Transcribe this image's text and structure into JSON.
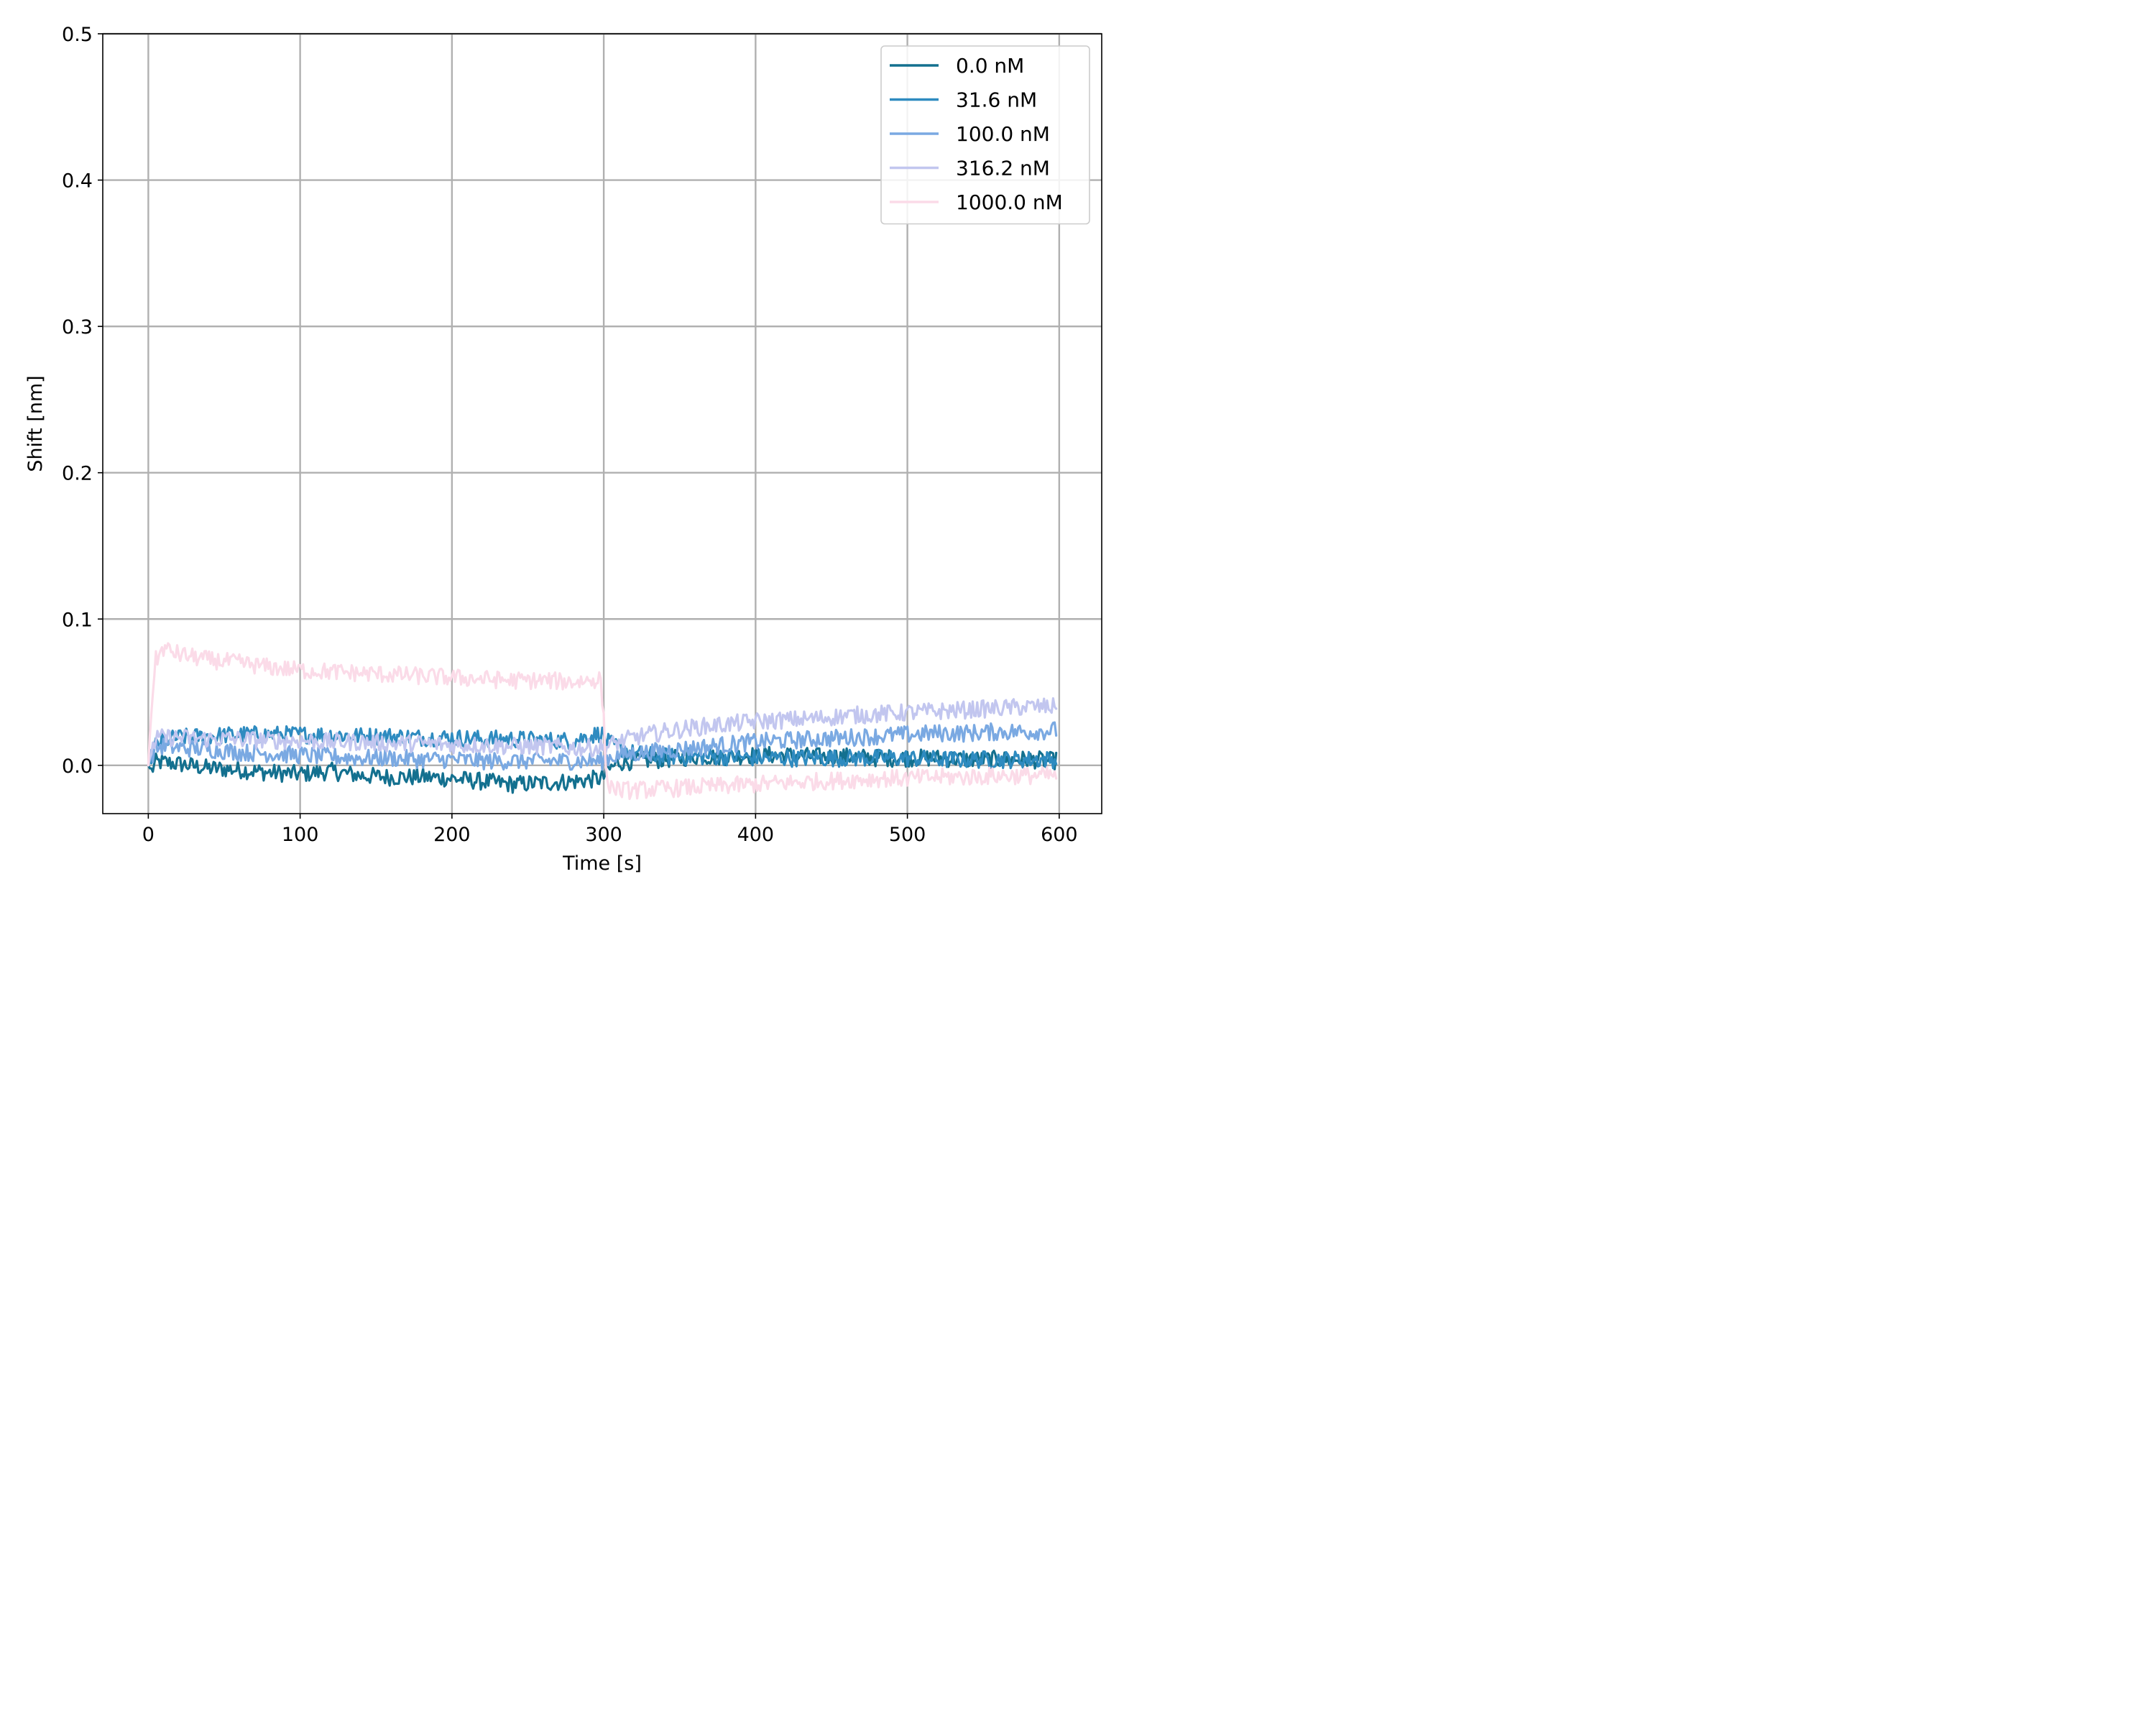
{
  "chart_data": {
    "type": "line",
    "title": "",
    "xlabel": "Time [s]",
    "ylabel": "Shift [nm]",
    "xlim": [
      -30,
      628
    ],
    "ylim": [
      -0.033,
      0.5
    ],
    "xticks": [
      0,
      100,
      200,
      300,
      400,
      500,
      600
    ],
    "yticks": [
      0.0,
      0.1,
      0.2,
      0.3,
      0.4,
      0.5
    ],
    "xtick_labels": [
      "0",
      "100",
      "200",
      "300",
      "400",
      "500",
      "600"
    ],
    "ytick_labels": [
      "0.0",
      "0.1",
      "0.2",
      "0.3",
      "0.4",
      "0.5"
    ],
    "grid": true,
    "legend_position": "top-right",
    "series": [
      {
        "name": "0.0 nM",
        "color": "#13708f",
        "x": [
          0,
          2,
          5,
          10,
          20,
          40,
          60,
          80,
          100,
          120,
          140,
          160,
          180,
          200,
          220,
          240,
          260,
          280,
          298,
          300,
          302,
          310,
          320,
          340,
          360,
          380,
          400,
          420,
          440,
          460,
          480,
          500,
          520,
          540,
          560,
          580,
          598
        ],
        "y": [
          0.0,
          -0.004,
          0.002,
          0.002,
          0.001,
          -0.002,
          -0.003,
          -0.005,
          -0.006,
          -0.004,
          -0.007,
          -0.008,
          -0.008,
          -0.009,
          -0.011,
          -0.013,
          -0.012,
          -0.011,
          -0.009,
          -0.008,
          -0.004,
          0.002,
          0.003,
          0.004,
          0.006,
          0.006,
          0.007,
          0.007,
          0.006,
          0.006,
          0.005,
          0.005,
          0.005,
          0.004,
          0.004,
          0.004,
          0.003
        ]
      },
      {
        "name": "31.6 nM",
        "color": "#2e8bc0",
        "x": [
          0,
          2,
          5,
          10,
          20,
          40,
          60,
          80,
          100,
          120,
          140,
          160,
          180,
          200,
          220,
          240,
          260,
          280,
          298,
          300,
          302,
          310,
          320,
          340,
          360,
          380,
          400,
          420,
          440,
          460,
          480,
          500,
          520,
          540,
          560,
          580,
          598
        ],
        "y": [
          0.0,
          0.006,
          0.014,
          0.017,
          0.019,
          0.02,
          0.021,
          0.021,
          0.021,
          0.021,
          0.02,
          0.02,
          0.019,
          0.019,
          0.018,
          0.018,
          0.017,
          0.017,
          0.022,
          0.02,
          0.016,
          0.012,
          0.008,
          0.006,
          0.006,
          0.006,
          0.005,
          0.005,
          0.005,
          0.005,
          0.005,
          0.005,
          0.004,
          0.004,
          0.004,
          0.004,
          0.004
        ]
      },
      {
        "name": "100.0 nM",
        "color": "#7aa9e2",
        "x": [
          0,
          2,
          5,
          10,
          20,
          40,
          60,
          80,
          100,
          120,
          140,
          160,
          180,
          200,
          220,
          240,
          260,
          280,
          298,
          300,
          302,
          310,
          320,
          340,
          360,
          380,
          400,
          420,
          440,
          460,
          480,
          500,
          520,
          540,
          560,
          580,
          598
        ],
        "y": [
          0.0,
          0.006,
          0.012,
          0.013,
          0.012,
          0.011,
          0.009,
          0.008,
          0.007,
          0.006,
          0.005,
          0.005,
          0.004,
          0.004,
          0.003,
          0.003,
          0.003,
          0.003,
          0.003,
          0.003,
          0.005,
          0.007,
          0.008,
          0.01,
          0.012,
          0.014,
          0.016,
          0.017,
          0.018,
          0.019,
          0.02,
          0.021,
          0.022,
          0.022,
          0.023,
          0.023,
          0.024
        ]
      },
      {
        "name": "316.2 nM",
        "color": "#c2c6ef",
        "x": [
          0,
          2,
          5,
          10,
          20,
          40,
          60,
          80,
          100,
          120,
          140,
          160,
          180,
          200,
          220,
          240,
          260,
          280,
          298,
          300,
          302,
          310,
          320,
          340,
          360,
          380,
          400,
          420,
          440,
          460,
          480,
          500,
          520,
          540,
          560,
          580,
          598
        ],
        "y": [
          0.0,
          0.01,
          0.018,
          0.019,
          0.019,
          0.018,
          0.018,
          0.017,
          0.017,
          0.016,
          0.016,
          0.015,
          0.015,
          0.014,
          0.014,
          0.013,
          0.013,
          0.012,
          0.012,
          0.012,
          0.013,
          0.016,
          0.019,
          0.023,
          0.026,
          0.028,
          0.03,
          0.031,
          0.032,
          0.034,
          0.035,
          0.036,
          0.037,
          0.038,
          0.039,
          0.04,
          0.04
        ]
      },
      {
        "name": "1000.0 nM",
        "color": "#fbdbe8",
        "x": [
          0,
          2,
          5,
          10,
          20,
          40,
          60,
          80,
          100,
          120,
          140,
          160,
          180,
          200,
          220,
          240,
          260,
          280,
          298,
          300,
          302,
          310,
          320,
          340,
          360,
          380,
          400,
          420,
          440,
          460,
          480,
          500,
          520,
          540,
          560,
          580,
          598
        ],
        "y": [
          0.0,
          0.04,
          0.072,
          0.08,
          0.076,
          0.072,
          0.07,
          0.067,
          0.065,
          0.064,
          0.063,
          0.062,
          0.061,
          0.06,
          0.059,
          0.058,
          0.058,
          0.057,
          0.059,
          0.03,
          -0.012,
          -0.017,
          -0.017,
          -0.016,
          -0.015,
          -0.014,
          -0.013,
          -0.012,
          -0.011,
          -0.01,
          -0.009,
          -0.009,
          -0.008,
          -0.008,
          -0.007,
          -0.007,
          -0.007
        ]
      }
    ]
  }
}
